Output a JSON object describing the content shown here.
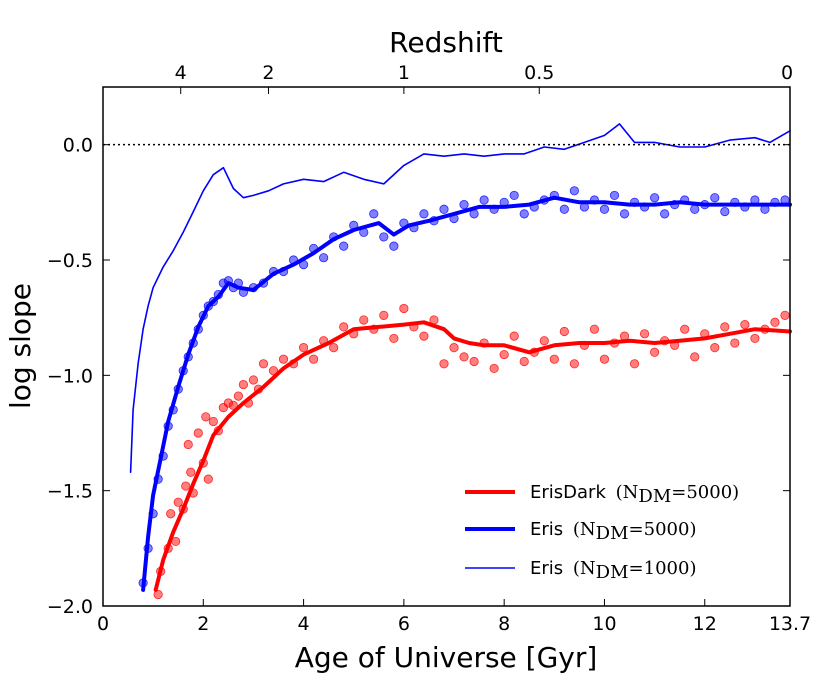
{
  "chart_data": {
    "type": "line",
    "title": "",
    "xlabel": "Age of Universe [Gyr]",
    "ylabel": "log slope",
    "top_axis_label": "Redshift",
    "xlim": [
      0,
      13.7
    ],
    "ylim": [
      -2.0,
      0.25
    ],
    "x_ticks": [
      {
        "value": 0,
        "label": "0"
      },
      {
        "value": 2,
        "label": "2"
      },
      {
        "value": 4,
        "label": "4"
      },
      {
        "value": 6,
        "label": "6"
      },
      {
        "value": 8,
        "label": "8"
      },
      {
        "value": 10,
        "label": "10"
      },
      {
        "value": 12,
        "label": "12"
      },
      {
        "value": 13.7,
        "label": "13.7"
      }
    ],
    "y_ticks": [
      {
        "value": 0.0,
        "label": "0.0"
      },
      {
        "value": -0.5,
        "label": "−0.5"
      },
      {
        "value": -1.0,
        "label": "−1.0"
      },
      {
        "value": -1.5,
        "label": "−1.5"
      },
      {
        "value": -2.0,
        "label": "−2.0"
      }
    ],
    "top_ticks": [
      {
        "age": 1.55,
        "label": "4"
      },
      {
        "age": 3.3,
        "label": "2"
      },
      {
        "age": 6.0,
        "label": "1"
      },
      {
        "age": 8.7,
        "label": "0.5"
      },
      {
        "age": 13.7,
        "label": "0"
      }
    ],
    "reference_line": {
      "y": 0.0,
      "style": "dotted",
      "color": "#000000"
    },
    "legend": {
      "placement": "lower-right",
      "entries": [
        {
          "name": "ErisDark",
          "math": "(N_DM = 5000)",
          "sub": "DM",
          "value": "5000",
          "color": "#ff0000",
          "weight": "thick"
        },
        {
          "name": "Eris",
          "math": "(N_DM = 5000)",
          "sub": "DM",
          "value": "5000",
          "color": "#0000ff",
          "weight": "thick"
        },
        {
          "name": "Eris",
          "math": "(N_DM = 1000)",
          "sub": "DM",
          "value": "1000",
          "color": "#0000ff",
          "weight": "thin"
        }
      ]
    },
    "series": [
      {
        "name": "ErisDark (N_DM=5000)",
        "color": "#ff0000",
        "style": "thick",
        "x": [
          1.05,
          1.2,
          1.4,
          1.6,
          1.8,
          2.0,
          2.2,
          2.5,
          2.8,
          3.2,
          3.6,
          4.0,
          4.5,
          5.0,
          5.5,
          6.0,
          6.4,
          6.8,
          7.0,
          7.3,
          7.6,
          8.0,
          8.5,
          9.0,
          9.5,
          10.0,
          10.5,
          11.0,
          11.5,
          12.0,
          12.5,
          13.0,
          13.7
        ],
        "y": [
          -1.93,
          -1.8,
          -1.68,
          -1.58,
          -1.47,
          -1.37,
          -1.26,
          -1.18,
          -1.12,
          -1.05,
          -0.97,
          -0.91,
          -0.86,
          -0.8,
          -0.79,
          -0.78,
          -0.77,
          -0.8,
          -0.84,
          -0.86,
          -0.87,
          -0.87,
          -0.9,
          -0.87,
          -0.86,
          -0.86,
          -0.85,
          -0.86,
          -0.85,
          -0.84,
          -0.82,
          -0.8,
          -0.81
        ]
      },
      {
        "name": "Eris (N_DM=5000)",
        "color": "#0000ff",
        "style": "thick",
        "x": [
          0.8,
          0.9,
          1.0,
          1.15,
          1.3,
          1.5,
          1.7,
          1.9,
          2.1,
          2.3,
          2.5,
          2.7,
          3.0,
          3.4,
          3.8,
          4.2,
          4.6,
          5.0,
          5.5,
          5.8,
          6.1,
          6.5,
          7.0,
          7.5,
          8.0,
          8.5,
          9.0,
          9.5,
          10.0,
          10.5,
          11.0,
          11.5,
          12.0,
          12.5,
          13.0,
          13.7
        ],
        "y": [
          -1.93,
          -1.7,
          -1.52,
          -1.36,
          -1.2,
          -1.05,
          -0.91,
          -0.79,
          -0.7,
          -0.66,
          -0.6,
          -0.62,
          -0.63,
          -0.56,
          -0.52,
          -0.47,
          -0.41,
          -0.37,
          -0.34,
          -0.39,
          -0.35,
          -0.33,
          -0.3,
          -0.27,
          -0.27,
          -0.26,
          -0.23,
          -0.25,
          -0.25,
          -0.26,
          -0.26,
          -0.25,
          -0.26,
          -0.26,
          -0.26,
          -0.26
        ]
      },
      {
        "name": "Eris (N_DM=1000)",
        "color": "#0000ff",
        "style": "thin",
        "x": [
          0.55,
          0.6,
          0.7,
          0.8,
          0.9,
          1.0,
          1.2,
          1.4,
          1.6,
          1.8,
          2.0,
          2.2,
          2.4,
          2.6,
          2.8,
          3.0,
          3.3,
          3.6,
          4.0,
          4.4,
          4.8,
          5.2,
          5.6,
          6.0,
          6.4,
          6.8,
          7.2,
          7.6,
          8.0,
          8.4,
          8.8,
          9.2,
          9.6,
          10.0,
          10.3,
          10.6,
          11.0,
          11.5,
          12.0,
          12.5,
          13.0,
          13.3,
          13.7
        ],
        "y": [
          -1.42,
          -1.15,
          -0.95,
          -0.8,
          -0.7,
          -0.62,
          -0.53,
          -0.46,
          -0.38,
          -0.29,
          -0.2,
          -0.13,
          -0.1,
          -0.19,
          -0.23,
          -0.22,
          -0.2,
          -0.17,
          -0.15,
          -0.16,
          -0.12,
          -0.15,
          -0.17,
          -0.09,
          -0.04,
          -0.05,
          -0.04,
          -0.05,
          -0.04,
          -0.04,
          -0.01,
          -0.02,
          0.01,
          0.04,
          0.09,
          0.01,
          0.01,
          -0.01,
          -0.01,
          0.02,
          0.03,
          0.01,
          0.06
        ]
      }
    ],
    "scatter": [
      {
        "name": "ErisDark points",
        "color": "#ff0000",
        "x": [
          1.1,
          1.15,
          1.3,
          1.35,
          1.45,
          1.5,
          1.6,
          1.65,
          1.7,
          1.75,
          1.8,
          1.9,
          2.0,
          2.05,
          2.1,
          2.2,
          2.3,
          2.4,
          2.5,
          2.6,
          2.7,
          2.8,
          2.9,
          3.0,
          3.1,
          3.2,
          3.4,
          3.6,
          3.8,
          4.0,
          4.2,
          4.4,
          4.6,
          4.8,
          5.0,
          5.2,
          5.4,
          5.6,
          5.8,
          6.0,
          6.2,
          6.4,
          6.6,
          6.8,
          7.0,
          7.2,
          7.4,
          7.6,
          7.8,
          8.0,
          8.2,
          8.4,
          8.6,
          8.8,
          9.0,
          9.2,
          9.4,
          9.6,
          9.8,
          10.0,
          10.2,
          10.4,
          10.6,
          10.8,
          11.0,
          11.2,
          11.4,
          11.6,
          11.8,
          12.0,
          12.2,
          12.4,
          12.6,
          12.8,
          13.0,
          13.2,
          13.4,
          13.6
        ],
        "y": [
          -1.95,
          -1.85,
          -1.75,
          -1.6,
          -1.72,
          -1.55,
          -1.58,
          -1.48,
          -1.3,
          -1.42,
          -1.51,
          -1.25,
          -1.38,
          -1.18,
          -1.45,
          -1.2,
          -1.24,
          -1.14,
          -1.12,
          -1.13,
          -1.09,
          -1.04,
          -1.12,
          -1.02,
          -1.06,
          -0.95,
          -0.98,
          -0.93,
          -0.95,
          -0.88,
          -0.93,
          -0.85,
          -0.88,
          -0.79,
          -0.82,
          -0.76,
          -0.8,
          -0.74,
          -0.84,
          -0.71,
          -0.79,
          -0.83,
          -0.76,
          -0.95,
          -0.88,
          -0.92,
          -0.94,
          -0.86,
          -0.97,
          -0.91,
          -0.83,
          -0.94,
          -0.9,
          -0.85,
          -0.93,
          -0.81,
          -0.95,
          -0.87,
          -0.8,
          -0.93,
          -0.86,
          -0.83,
          -0.95,
          -0.82,
          -0.9,
          -0.85,
          -0.87,
          -0.8,
          -0.92,
          -0.82,
          -0.88,
          -0.79,
          -0.86,
          -0.78,
          -0.84,
          -0.8,
          -0.77,
          -0.74
        ]
      },
      {
        "name": "Eris points",
        "color": "#0000ff",
        "x": [
          0.8,
          0.9,
          1.0,
          1.1,
          1.2,
          1.3,
          1.4,
          1.5,
          1.6,
          1.7,
          1.8,
          1.9,
          2.0,
          2.1,
          2.2,
          2.3,
          2.4,
          2.5,
          2.6,
          2.7,
          2.8,
          3.0,
          3.2,
          3.4,
          3.6,
          3.8,
          4.0,
          4.2,
          4.4,
          4.6,
          4.8,
          5.0,
          5.2,
          5.4,
          5.6,
          5.8,
          6.0,
          6.2,
          6.4,
          6.6,
          6.8,
          7.0,
          7.2,
          7.4,
          7.6,
          7.8,
          8.0,
          8.2,
          8.4,
          8.6,
          8.8,
          9.0,
          9.2,
          9.4,
          9.6,
          9.8,
          10.0,
          10.2,
          10.4,
          10.6,
          10.8,
          11.0,
          11.2,
          11.4,
          11.6,
          11.8,
          12.0,
          12.2,
          12.4,
          12.6,
          12.8,
          13.0,
          13.2,
          13.4,
          13.6
        ],
        "y": [
          -1.9,
          -1.75,
          -1.6,
          -1.45,
          -1.35,
          -1.22,
          -1.15,
          -1.06,
          -0.98,
          -0.92,
          -0.86,
          -0.8,
          -0.74,
          -0.7,
          -0.68,
          -0.65,
          -0.6,
          -0.59,
          -0.62,
          -0.6,
          -0.64,
          -0.62,
          -0.6,
          -0.55,
          -0.55,
          -0.5,
          -0.52,
          -0.45,
          -0.49,
          -0.4,
          -0.44,
          -0.35,
          -0.38,
          -0.3,
          -0.4,
          -0.44,
          -0.34,
          -0.36,
          -0.3,
          -0.33,
          -0.28,
          -0.32,
          -0.26,
          -0.3,
          -0.24,
          -0.28,
          -0.25,
          -0.22,
          -0.3,
          -0.27,
          -0.24,
          -0.22,
          -0.28,
          -0.2,
          -0.27,
          -0.24,
          -0.28,
          -0.22,
          -0.3,
          -0.25,
          -0.27,
          -0.23,
          -0.3,
          -0.26,
          -0.24,
          -0.28,
          -0.26,
          -0.23,
          -0.29,
          -0.25,
          -0.27,
          -0.24,
          -0.28,
          -0.25,
          -0.24
        ]
      }
    ]
  }
}
